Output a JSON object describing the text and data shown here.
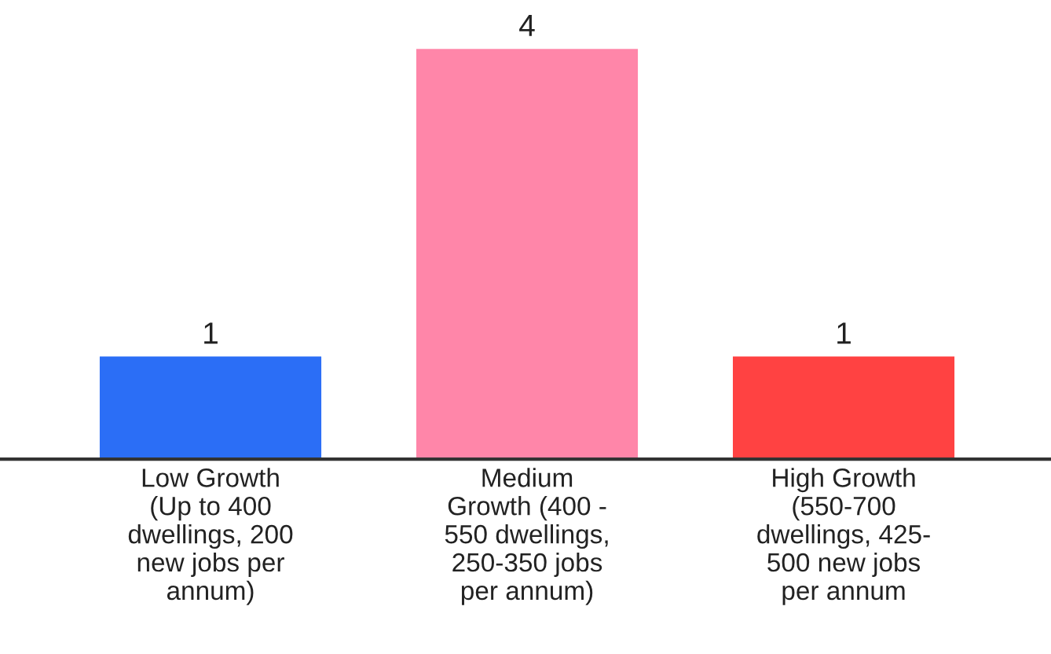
{
  "chart_data": {
    "type": "bar",
    "categories": [
      "Low Growth\n(Up to 400\ndwellings, 200\nnew jobs per\nannum)",
      "Medium\nGrowth (400 -\n550 dwellings,\n250-350 jobs\nper annum)",
      "High Growth\n(550-700\ndwellings, 425-\n500 new jobs\nper annum"
    ],
    "values": [
      1,
      4,
      1
    ],
    "colors": [
      "#2b6ef6",
      "#ff86a9",
      "#ff4242"
    ],
    "data_labels": true
  }
}
